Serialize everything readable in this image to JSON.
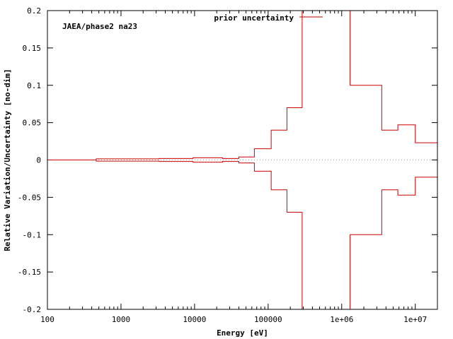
{
  "chart_data": {
    "type": "line",
    "title": "",
    "annotation": "JAEA/phase2 na23",
    "xlabel": "Energy [eV]",
    "ylabel": "Relative Variation/Uncertainty [no-dim]",
    "x_scale": "log",
    "xlim": [
      100,
      20000000
    ],
    "ylim": [
      -0.2,
      0.2
    ],
    "x_ticks": [
      100,
      1000,
      10000,
      100000,
      1000000,
      10000000
    ],
    "x_tick_labels": [
      "100",
      "1000",
      "10000",
      "100000",
      "1e+06",
      "1e+07"
    ],
    "y_ticks": [
      -0.2,
      -0.15,
      -0.1,
      -0.05,
      0,
      0.05,
      0.1,
      0.15,
      0.2
    ],
    "y_tick_labels": [
      "-0.2",
      "-0.15",
      "-0.1",
      "-0.05",
      "0",
      "0.05",
      "0.1",
      "0.15",
      "0.2"
    ],
    "zero_line": true,
    "legend_position": "top-right",
    "series": [
      {
        "name": "prior uncertainty",
        "color": "#cc0000",
        "style": "step-symmetric",
        "edges": [
          100,
          460,
          3300,
          9500,
          24000,
          40000,
          65000,
          110000,
          180000,
          290000,
          1300000,
          3500000,
          5800000,
          10000000,
          20000000
        ],
        "values": [
          0.0,
          0.0015,
          0.002,
          0.003,
          0.002,
          0.004,
          0.015,
          0.04,
          0.07,
          0.5,
          0.1,
          0.04,
          0.047,
          0.023
        ]
      }
    ]
  }
}
